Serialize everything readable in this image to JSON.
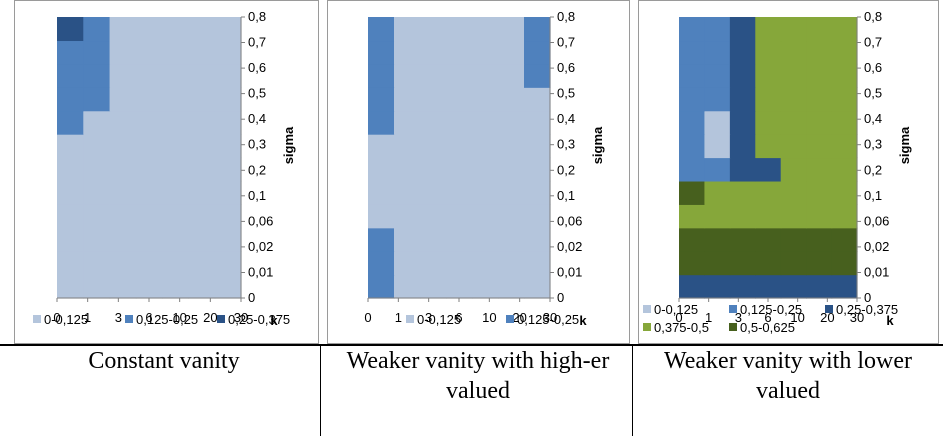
{
  "colors": {
    "c0": "#b4c5dc",
    "c1": "#4f81bd",
    "c2": "#2a5286",
    "c3": "#86a73a",
    "c4": "#47601e"
  },
  "chart_data": [
    {
      "type": "heatmap",
      "title": "",
      "xlabel": "k",
      "ylabel": "sigma",
      "x": [
        "0",
        "1",
        "3",
        "6",
        "10",
        "20",
        "30"
      ],
      "y": [
        "0",
        "0,01",
        "0,02",
        "0,06",
        "0,1",
        "0,2",
        "0,3",
        "0,4",
        "0,5",
        "0,6",
        "0,7",
        "0,8"
      ],
      "legend": [
        {
          "label": "0-0,125",
          "color": "#b4c5dc"
        },
        {
          "label": "0,125-0,25",
          "color": "#4f81bd"
        },
        {
          "label": "0,25-0,375",
          "color": "#2a5286"
        }
      ],
      "values": [
        [
          0,
          0,
          0,
          0,
          0,
          0,
          0
        ],
        [
          0,
          0,
          0,
          0,
          0,
          0,
          0
        ],
        [
          0,
          0,
          0,
          0,
          0,
          0,
          0
        ],
        [
          0,
          0,
          0,
          0,
          0,
          0,
          0
        ],
        [
          0,
          0,
          0,
          0,
          0,
          0,
          0
        ],
        [
          0,
          0,
          0,
          0,
          0,
          0,
          0
        ],
        [
          0,
          0,
          0,
          0,
          0,
          0,
          0
        ],
        [
          1,
          0,
          0,
          0,
          0,
          0,
          0
        ],
        [
          1,
          1,
          0,
          0,
          0,
          0,
          0
        ],
        [
          1,
          1,
          0,
          0,
          0,
          0,
          0
        ],
        [
          1,
          1,
          0,
          0,
          0,
          0,
          0
        ],
        [
          2,
          1,
          0,
          0,
          0,
          0,
          0
        ]
      ]
    },
    {
      "type": "heatmap",
      "title": "",
      "xlabel": "k",
      "ylabel": "sigma",
      "x": [
        "0",
        "1",
        "3",
        "6",
        "10",
        "20",
        "30"
      ],
      "y": [
        "0",
        "0,01",
        "0,02",
        "0,06",
        "0,1",
        "0,2",
        "0,3",
        "0,4",
        "0,5",
        "0,6",
        "0,7",
        "0,8"
      ],
      "legend": [
        {
          "label": "0-0,125",
          "color": "#b4c5dc"
        },
        {
          "label": "0,125-0,25",
          "color": "#4f81bd"
        }
      ],
      "values": [
        [
          1,
          0,
          0,
          0,
          0,
          0,
          0
        ],
        [
          1,
          0,
          0,
          0,
          0,
          0,
          0
        ],
        [
          1,
          0,
          0,
          0,
          0,
          0,
          0
        ],
        [
          0,
          0,
          0,
          0,
          0,
          0,
          0
        ],
        [
          0,
          0,
          0,
          0,
          0,
          0,
          0
        ],
        [
          0,
          0,
          0,
          0,
          0,
          0,
          0
        ],
        [
          0,
          0,
          0,
          0,
          0,
          0,
          0
        ],
        [
          1,
          0,
          0,
          0,
          0,
          0,
          0
        ],
        [
          1,
          0,
          0,
          0,
          0,
          0,
          0
        ],
        [
          1,
          0,
          0,
          0,
          0,
          0,
          1
        ],
        [
          1,
          0,
          0,
          0,
          0,
          0,
          1
        ],
        [
          1,
          0,
          0,
          0,
          0,
          0,
          1
        ]
      ]
    },
    {
      "type": "heatmap",
      "title": "",
      "xlabel": "k",
      "ylabel": "sigma",
      "x": [
        "0",
        "1",
        "3",
        "6",
        "10",
        "20",
        "30"
      ],
      "y": [
        "0",
        "0,01",
        "0,02",
        "0,06",
        "0,1",
        "0,2",
        "0,3",
        "0,4",
        "0,5",
        "0,6",
        "0,7",
        "0,8"
      ],
      "legend": [
        {
          "label": "0-0,125",
          "color": "#b4c5dc"
        },
        {
          "label": "0,125-0,25",
          "color": "#4f81bd"
        },
        {
          "label": "0,25-0,375",
          "color": "#2a5286"
        },
        {
          "label": "0,375-0,5",
          "color": "#86a73a"
        },
        {
          "label": "0,5-0,625",
          "color": "#47601e"
        }
      ],
      "values": [
        [
          2,
          2,
          2,
          2,
          2,
          2,
          2
        ],
        [
          4,
          4,
          4,
          4,
          4,
          4,
          4
        ],
        [
          4,
          4,
          4,
          4,
          4,
          4,
          4
        ],
        [
          3,
          3,
          3,
          3,
          3,
          3,
          3
        ],
        [
          4,
          3,
          3,
          3,
          3,
          3,
          3
        ],
        [
          1,
          1,
          2,
          2,
          3,
          3,
          3
        ],
        [
          1,
          0,
          2,
          3,
          3,
          3,
          3
        ],
        [
          1,
          0,
          2,
          3,
          3,
          3,
          3
        ],
        [
          1,
          1,
          2,
          3,
          3,
          3,
          3
        ],
        [
          1,
          1,
          2,
          3,
          3,
          3,
          3
        ],
        [
          1,
          1,
          2,
          3,
          3,
          3,
          3
        ],
        [
          1,
          1,
          2,
          3,
          3,
          3,
          3
        ]
      ]
    }
  ],
  "captions": [
    "Constant vanity",
    "Weaker vanity with high-er valued",
    "Weaker vanity with lower valued"
  ]
}
